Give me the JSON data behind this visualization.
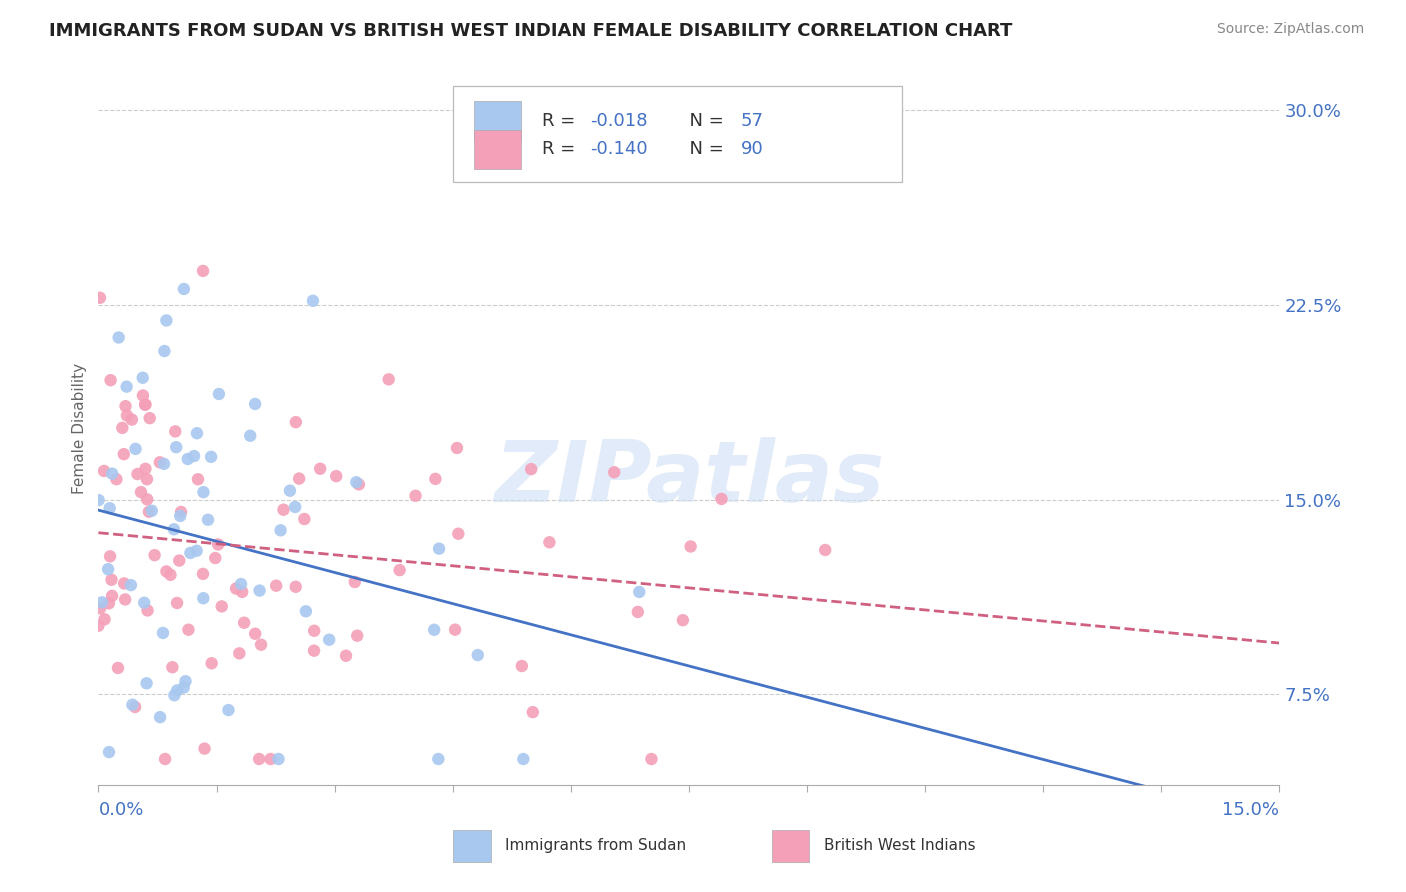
{
  "title": "IMMIGRANTS FROM SUDAN VS BRITISH WEST INDIAN FEMALE DISABILITY CORRELATION CHART",
  "source": "Source: ZipAtlas.com",
  "ylabel": "Female Disability",
  "right_yticks": [
    7.5,
    15.0,
    22.5,
    30.0
  ],
  "right_ytick_labels": [
    "7.5%",
    "15.0%",
    "22.5%",
    "30.0%"
  ],
  "xmin": 0.0,
  "xmax": 0.15,
  "ymin": 0.04,
  "ymax": 0.315,
  "series1_label": "Immigrants from Sudan",
  "series1_R": -0.018,
  "series1_N": 57,
  "series1_color": "#a8c8f0",
  "series1_line_color": "#4472c4",
  "series2_label": "British West Indians",
  "series2_R": -0.14,
  "series2_N": 90,
  "series2_color": "#f4a0b8",
  "series2_line_color": "#d06080",
  "background_color": "#ffffff",
  "grid_color": "#cccccc",
  "title_color": "#333333"
}
